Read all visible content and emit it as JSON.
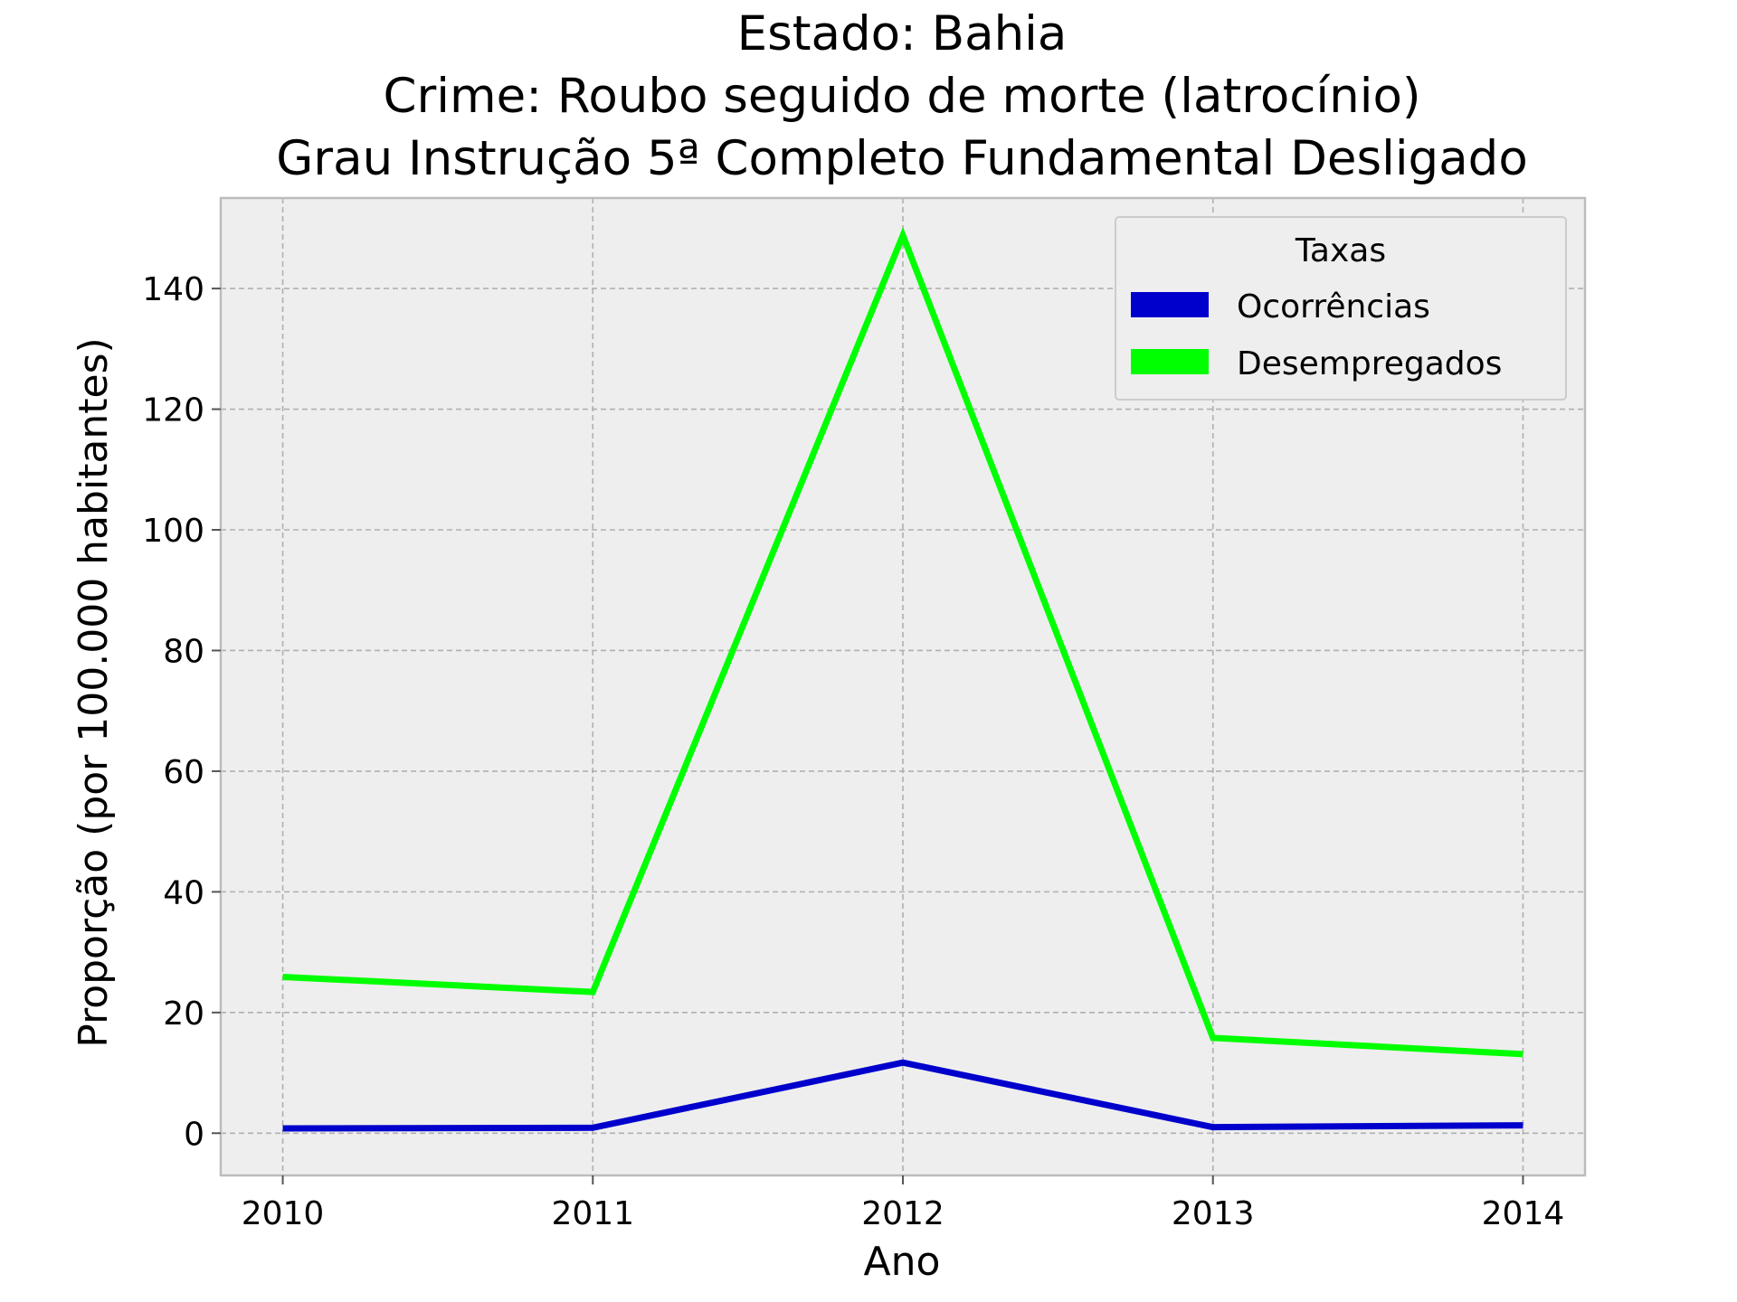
{
  "chart_data": {
    "type": "line",
    "title_lines": [
      "Estado: Bahia",
      "Crime: Roubo seguido de morte (latrocínio)",
      "Grau Instrução  5ª Completo Fundamental   Desligado"
    ],
    "xlabel": "Ano",
    "ylabel": "Proporção (por 100.000 habitantes)",
    "x": [
      2010,
      2011,
      2012,
      2013,
      2014
    ],
    "x_tick_labels": [
      "2010",
      "2011",
      "2012",
      "2013",
      "2014"
    ],
    "xlim": [
      2009.8,
      2014.2
    ],
    "ylim": [
      -7,
      155
    ],
    "y_ticks": [
      0,
      20,
      40,
      60,
      80,
      100,
      120,
      140
    ],
    "y_tick_labels": [
      "0",
      "20",
      "40",
      "60",
      "80",
      "100",
      "120",
      "140"
    ],
    "grid": true,
    "legend": {
      "title": "Taxas",
      "placement": "top-right"
    },
    "series": [
      {
        "name": "Ocorrências",
        "color": "#0000cc",
        "values": [
          0.8,
          0.9,
          11.7,
          1.0,
          1.3
        ]
      },
      {
        "name": "Desempregados",
        "color": "#00ff00",
        "values": [
          25.9,
          23.4,
          148.8,
          15.8,
          13.1
        ]
      }
    ],
    "colors": {
      "plot_background": "#eeeeee",
      "frame": "#bcbcbc"
    }
  }
}
